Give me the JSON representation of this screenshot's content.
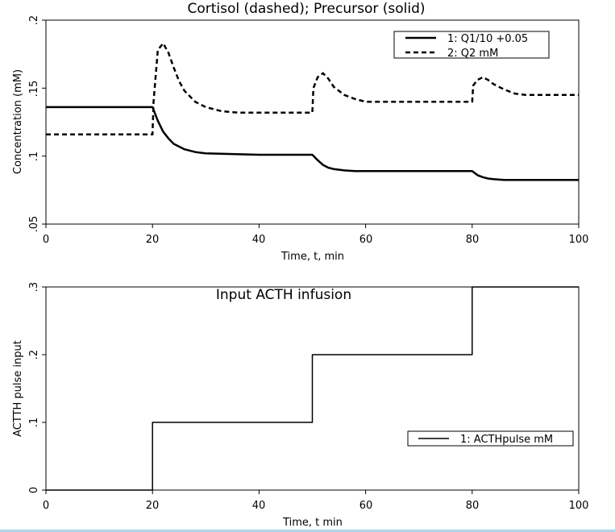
{
  "chart_data": [
    {
      "type": "line",
      "title": "Cortisol (dashed); Precursor (solid)",
      "xlabel": "Time, t, min",
      "ylabel": "Concentration (mM)",
      "xlim": [
        0,
        100
      ],
      "ylim": [
        0.05,
        0.2
      ],
      "xticks": [
        "0",
        "20",
        "40",
        "60",
        "80",
        "100"
      ],
      "yticks": [
        ".05",
        ".1",
        ".15",
        ".2"
      ],
      "legend_position": "top-right",
      "series": [
        {
          "name": "1: Q1/10 +0.05",
          "style": "solid",
          "x": [
            0,
            20,
            21,
            22,
            23,
            24,
            25,
            26,
            28,
            30,
            35,
            40,
            45,
            50,
            51,
            52,
            53,
            54,
            56,
            58,
            60,
            65,
            70,
            75,
            80,
            81,
            82,
            83,
            84,
            86,
            88,
            90,
            95,
            100
          ],
          "y": [
            0.136,
            0.136,
            0.126,
            0.118,
            0.113,
            0.109,
            0.107,
            0.105,
            0.103,
            0.102,
            0.1015,
            0.101,
            0.101,
            0.101,
            0.097,
            0.0935,
            0.0915,
            0.0905,
            0.0895,
            0.089,
            0.089,
            0.089,
            0.089,
            0.089,
            0.089,
            0.086,
            0.0845,
            0.0835,
            0.083,
            0.0825,
            0.0825,
            0.0825,
            0.0825,
            0.0825
          ]
        },
        {
          "name": "2: Q2 mM",
          "style": "dashed",
          "x": [
            0,
            20,
            20.2,
            21,
            22,
            23,
            24,
            25,
            26,
            28,
            30,
            33,
            36,
            40,
            45,
            50,
            50.2,
            51,
            52,
            53,
            54,
            56,
            58,
            60,
            65,
            70,
            75,
            80,
            80.2,
            81,
            82,
            83,
            84,
            86,
            88,
            90,
            95,
            100
          ],
          "y": [
            0.116,
            0.116,
            0.14,
            0.178,
            0.183,
            0.176,
            0.165,
            0.155,
            0.148,
            0.14,
            0.136,
            0.133,
            0.132,
            0.132,
            0.132,
            0.132,
            0.15,
            0.158,
            0.161,
            0.157,
            0.151,
            0.145,
            0.142,
            0.14,
            0.14,
            0.14,
            0.14,
            0.14,
            0.152,
            0.156,
            0.158,
            0.156,
            0.153,
            0.149,
            0.146,
            0.145,
            0.145,
            0.145
          ]
        }
      ]
    },
    {
      "type": "line",
      "title": "Input ACTH infusion",
      "xlabel": "Time, t min",
      "ylabel": "ACTTH pulse input",
      "xlim": [
        0,
        100
      ],
      "ylim": [
        0,
        0.3
      ],
      "xticks": [
        "0",
        "20",
        "40",
        "60",
        "80",
        "100"
      ],
      "yticks": [
        "0",
        ".1",
        ".2",
        ".3"
      ],
      "legend_position": "right",
      "series": [
        {
          "name": "1: ACTHpulse mM",
          "style": "solid",
          "x": [
            0,
            20,
            20,
            50,
            50,
            80,
            80,
            100
          ],
          "y": [
            0,
            0,
            0.1,
            0.1,
            0.2,
            0.2,
            0.3,
            0.3
          ]
        }
      ]
    }
  ]
}
